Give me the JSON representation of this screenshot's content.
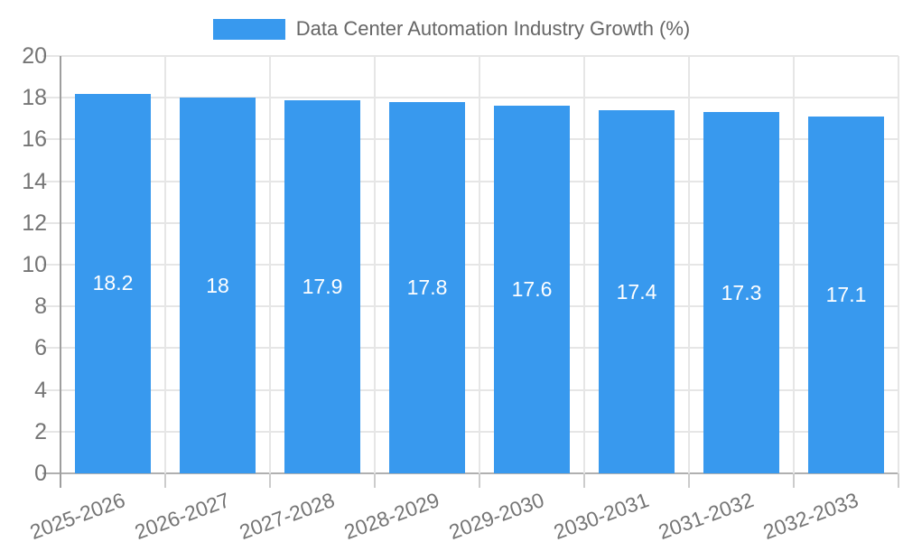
{
  "legend": {
    "label": "Data Center Automation Industry Growth (%)"
  },
  "chart_data": {
    "type": "bar",
    "title": "Data Center Automation Industry Growth (%)",
    "categories": [
      "2025-2026",
      "2026-2027",
      "2027-2028",
      "2028-2029",
      "2029-2030",
      "2030-2031",
      "2031-2032",
      "2032-2033"
    ],
    "values": [
      18.2,
      18,
      17.9,
      17.8,
      17.6,
      17.4,
      17.3,
      17.1
    ],
    "value_labels": [
      "18.2",
      "18",
      "17.9",
      "17.8",
      "17.6",
      "17.4",
      "17.3",
      "17.1"
    ],
    "xlabel": "",
    "ylabel": "",
    "ylim": [
      0,
      20
    ],
    "ytick_step": 2,
    "ytick_labels": [
      "0",
      "2",
      "4",
      "6",
      "8",
      "10",
      "12",
      "14",
      "16",
      "18",
      "20"
    ],
    "grid": true,
    "legend_position": "top-center",
    "colors": {
      "bar": "#3899EE",
      "value_label": "#FFFFFF",
      "grid_line": "#E6E6E6",
      "baseline": "#B0B0B0",
      "axis_line": "#9E9E9E",
      "tick": "#CCCCCC",
      "axis_label": "#757575",
      "legend_text": "#666666",
      "background": "#FFFFFF"
    }
  }
}
